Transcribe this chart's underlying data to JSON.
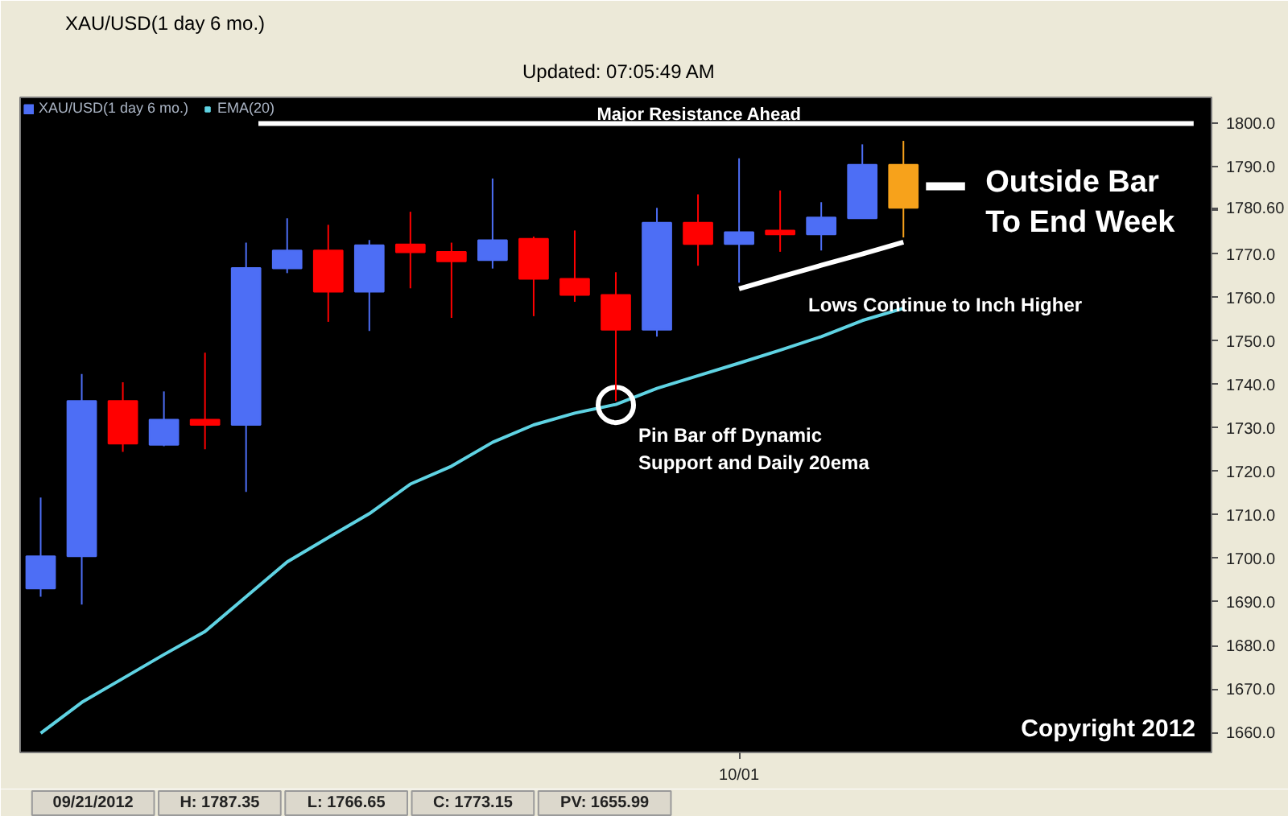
{
  "chart_data": {
    "type": "candlestick",
    "title": "XAU/USD(1 day 6 mo.)",
    "categories": [
      null,
      null,
      null,
      null,
      null,
      null,
      null,
      null,
      null,
      null,
      null,
      null,
      null,
      null,
      null,
      null,
      null,
      "10/01",
      null,
      null,
      null,
      null,
      null,
      null,
      null,
      null,
      null,
      null,
      null
    ],
    "series": [
      {
        "name": "XAU/USD(1 day 6 mo.)",
        "colors": [
          "#4d6ef5",
          "#4d6ef5",
          "#ff0000",
          "#4d6ef5",
          "#ff0000",
          "#4d6ef5",
          "#4d6ef5",
          "#ff0000",
          "#4d6ef5",
          "#ff0000",
          "#ff0000",
          "#4d6ef5",
          "#ff0000",
          "#ff0000",
          "#ff0000",
          "#4d6ef5",
          "#ff0000",
          "#4d6ef5",
          "#ff0000",
          "#4d6ef5",
          "#4d6ef5",
          "#f7a21b",
          null,
          null,
          null,
          null,
          null,
          null,
          null
        ],
        "ohlc": [
          [
            1693.1,
            1714.0,
            1691.2,
            1700.5
          ],
          [
            1700.5,
            1742.4,
            1689.4,
            1736.2
          ],
          [
            1736.2,
            1740.5,
            1724.5,
            1726.4
          ],
          [
            1726.1,
            1738.4,
            1725.8,
            1731.9
          ],
          [
            1731.9,
            1747.3,
            1725.1,
            1730.7
          ],
          [
            1730.7,
            1772.6,
            1715.3,
            1766.8
          ],
          [
            1766.7,
            1778.2,
            1765.6,
            1770.8
          ],
          [
            1770.8,
            1776.7,
            1754.4,
            1761.3
          ],
          [
            1761.3,
            1773.2,
            1752.3,
            1772.0
          ],
          [
            1772.2,
            1779.7,
            1762.1,
            1770.4
          ],
          [
            1770.5,
            1772.6,
            1755.3,
            1768.3
          ],
          [
            1768.6,
            1787.35,
            1766.65,
            1773.15
          ],
          [
            1773.5,
            1774.0,
            1755.7,
            1764.3
          ],
          [
            1764.3,
            1775.4,
            1759.0,
            1760.6
          ],
          [
            1760.6,
            1765.8,
            1736.2,
            1752.6
          ],
          [
            1752.6,
            1780.6,
            1751.0,
            1777.2
          ],
          [
            1777.2,
            1783.7,
            1767.3,
            1772.3
          ],
          [
            1772.3,
            1792.0,
            1763.4,
            1775.0
          ],
          [
            1775.4,
            1784.6,
            1770.5,
            1774.5
          ],
          [
            1774.5,
            1781.9,
            1770.8,
            1778.4
          ],
          [
            1778.2,
            1795.2,
            1778.2,
            1790.5
          ],
          [
            1790.5,
            1796.0,
            1773.8,
            1780.6
          ],
          null,
          null,
          null,
          null,
          null,
          null,
          null
        ]
      },
      {
        "name": "EMA(20)",
        "type": "line",
        "color": "#5fd3e3",
        "values": [
          1659.8,
          1666.9,
          1672.4,
          1677.9,
          1683.2,
          1691.2,
          1699.2,
          1704.8,
          1710.3,
          1717.1,
          1721.2,
          1726.7,
          1730.7,
          1733.4,
          1735.4,
          1739.1,
          1742.0,
          1744.9,
          1747.9,
          1751.0,
          1754.7,
          1757.5,
          null,
          null,
          null,
          null,
          null,
          null,
          null
        ]
      },
      {
        "name": "Lows Continue to Inch Higher",
        "type": "line",
        "color": "#ffffff",
        "values": [
          null,
          null,
          null,
          null,
          null,
          null,
          null,
          null,
          null,
          null,
          null,
          null,
          null,
          null,
          null,
          null,
          null,
          1762.0,
          1764.7,
          1767.4,
          1770.0,
          1772.7,
          null,
          null,
          null,
          null,
          null,
          null,
          null
        ]
      },
      {
        "name": "Pin Bar off Dynamic\nSupport and Daily 20ema",
        "type": "scatter",
        "marker": "circle",
        "color": "#ffffff",
        "values": [
          null,
          null,
          null,
          null,
          null,
          null,
          null,
          null,
          null,
          null,
          null,
          null,
          null,
          null,
          1735.3,
          null,
          null,
          null,
          null,
          null,
          null,
          null,
          null,
          null,
          null,
          null,
          null,
          null,
          null
        ]
      }
    ],
    "ylim": [
      1655.4,
      1806
    ],
    "yticks": [
      {
        "value": 1660,
        "label": "1660.0"
      },
      {
        "value": 1670,
        "label": "1670.0"
      },
      {
        "value": 1680,
        "label": "1680.0"
      },
      {
        "value": 1690,
        "label": "1690.0"
      },
      {
        "value": 1700,
        "label": "1700.0"
      },
      {
        "value": 1710,
        "label": "1710.0"
      },
      {
        "value": 1720,
        "label": "1720.0"
      },
      {
        "value": 1730,
        "label": "1730.0"
      },
      {
        "value": 1740,
        "label": "1740.0"
      },
      {
        "value": 1750,
        "label": "1750.0"
      },
      {
        "value": 1760,
        "label": "1760.0"
      },
      {
        "value": 1770,
        "label": "1770.0"
      },
      {
        "value": 1780,
        "label": null
      },
      {
        "value": 1780.6,
        "label": "1780.60"
      },
      {
        "value": 1790,
        "label": "1790.0"
      },
      {
        "value": 1800,
        "label": "1800.0"
      }
    ],
    "ref_lines": [
      {
        "axis": "y",
        "value": 1800,
        "label": "Major Resistance Ahead",
        "color": "#ffffff"
      }
    ],
    "annotations": [
      "Updated: 07:05:49 AM",
      "Outside Bar\nTo End Week",
      "Copyright 2012",
      "09/21/2012",
      "H: 1787.35",
      "L: 1766.65",
      "C: 1773.15",
      "PV: 1655.99"
    ],
    "legend": "top left",
    "grid": false
  }
}
